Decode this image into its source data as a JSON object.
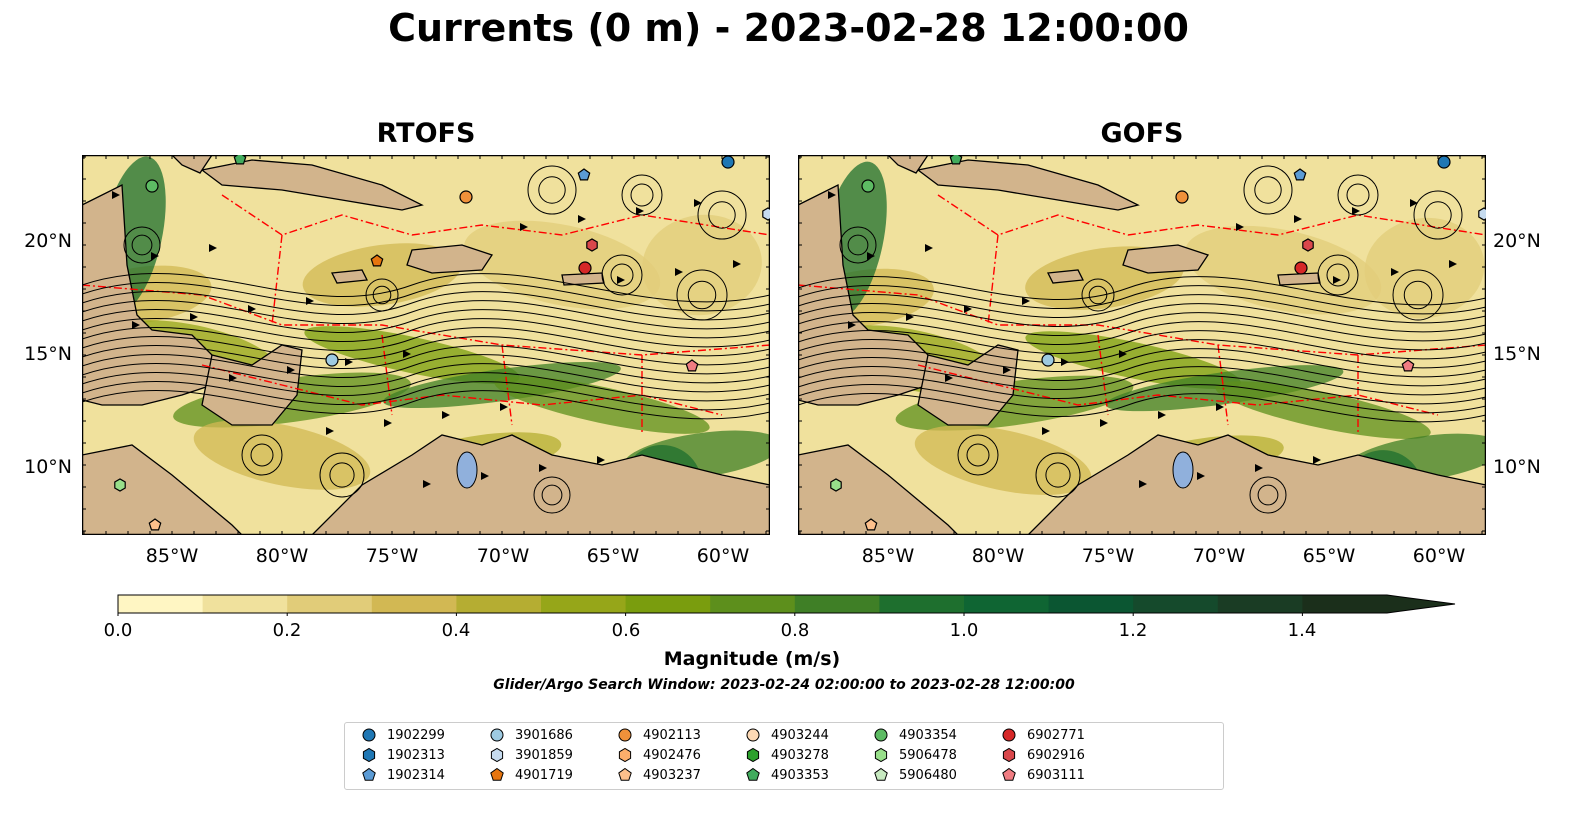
{
  "title": "Currents (0 m) - 2023-02-28 12:00:00",
  "panels": [
    {
      "name": "RTOFS"
    },
    {
      "name": "GOFS"
    }
  ],
  "x_ticks": [
    "85°W",
    "80°W",
    "75°W",
    "70°W",
    "65°W",
    "60°W"
  ],
  "y_ticks": [
    "20°N",
    "15°N",
    "10°N"
  ],
  "colorbar": {
    "label": "Magnitude (m/s)",
    "ticks": [
      "0.0",
      "0.2",
      "0.4",
      "0.6",
      "0.8",
      "1.0",
      "1.2",
      "1.4"
    ],
    "colors": [
      "#fff6c3",
      "#f0e19d",
      "#e1cc79",
      "#d2b853",
      "#b5ad32",
      "#96a619",
      "#7a9d0e",
      "#5d8f1c",
      "#3f7f26",
      "#1e6f2e",
      "#0f6533",
      "#0b5632",
      "#154a2c",
      "#1a3c24",
      "#1b2f1b"
    ],
    "extend": "max"
  },
  "search_window": "Glider/Argo Search Window: 2023-02-24 02:00:00 to 2023-02-28 12:00:00",
  "legend": [
    {
      "id": "1902299",
      "color": "#1f77b4",
      "marker": "circle"
    },
    {
      "id": "1902313",
      "color": "#1f77b4",
      "marker": "hexagon"
    },
    {
      "id": "1902314",
      "color": "#5b9bd5",
      "marker": "pentagon"
    },
    {
      "id": "3901686",
      "color": "#9ecae1",
      "marker": "circle"
    },
    {
      "id": "3901859",
      "color": "#c6dbef",
      "marker": "hexagon"
    },
    {
      "id": "4901719",
      "color": "#e6750f",
      "marker": "pentagon"
    },
    {
      "id": "4902113",
      "color": "#f0913a",
      "marker": "circle"
    },
    {
      "id": "4902476",
      "color": "#fdae6b",
      "marker": "hexagon"
    },
    {
      "id": "4903237",
      "color": "#fdc08c",
      "marker": "pentagon"
    },
    {
      "id": "4903244",
      "color": "#fdd9b5",
      "marker": "circle"
    },
    {
      "id": "4903278",
      "color": "#2ca02c",
      "marker": "hexagon"
    },
    {
      "id": "4903353",
      "color": "#41ab5d",
      "marker": "pentagon"
    },
    {
      "id": "4903354",
      "color": "#5dbb63",
      "marker": "circle"
    },
    {
      "id": "5906478",
      "color": "#98df8a",
      "marker": "hexagon"
    },
    {
      "id": "5906480",
      "color": "#c7e9c0",
      "marker": "pentagon"
    },
    {
      "id": "6902771",
      "color": "#d62728",
      "marker": "circle"
    },
    {
      "id": "6902916",
      "color": "#d9474b",
      "marker": "hexagon"
    },
    {
      "id": "6903111",
      "color": "#f07c82",
      "marker": "pentagon"
    }
  ],
  "colors": {
    "land": "#d2b48c",
    "eez_lines": "#ff0000",
    "rivers": "#a0b4cc",
    "lakes": "#90b0dc"
  }
}
